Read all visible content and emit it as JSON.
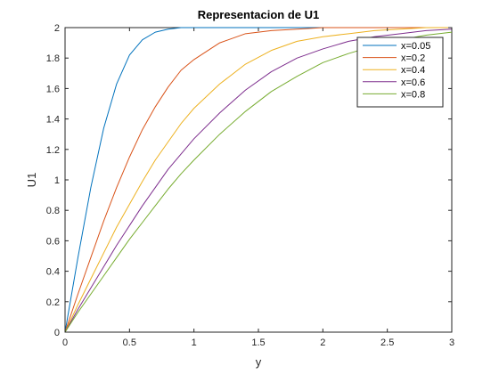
{
  "chart_data": {
    "type": "line",
    "title": "Representacion de U1",
    "xlabel": "y",
    "ylabel": "U1",
    "xlim": [
      0,
      3
    ],
    "ylim": [
      0,
      2
    ],
    "x_ticks": [
      "0",
      "0.5",
      "1",
      "1.5",
      "2",
      "2.5",
      "3"
    ],
    "y_ticks": [
      "0",
      "0.2",
      "0.4",
      "0.6",
      "0.8",
      "1",
      "1.2",
      "1.4",
      "1.6",
      "1.8",
      "2"
    ],
    "grid": false,
    "legend_position": "top-right",
    "x": [
      0,
      0.1,
      0.2,
      0.3,
      0.4,
      0.5,
      0.6,
      0.7,
      0.8,
      0.9,
      1.0,
      1.2,
      1.4,
      1.6,
      1.8,
      2.0,
      2.2,
      2.4,
      2.6,
      2.8,
      3.0
    ],
    "series": [
      {
        "name": "x=0.05",
        "color": "#0072BD",
        "values": [
          0,
          0.49,
          0.95,
          1.34,
          1.63,
          1.82,
          1.92,
          1.97,
          1.99,
          2.0,
          2.0,
          2.0,
          2.0,
          2.0,
          2.0,
          2.0,
          2.0,
          2.0,
          2.0,
          2.0,
          2.0
        ]
      },
      {
        "name": "x=0.2",
        "color": "#D95319",
        "values": [
          0,
          0.25,
          0.49,
          0.73,
          0.95,
          1.15,
          1.33,
          1.48,
          1.61,
          1.72,
          1.79,
          1.9,
          1.96,
          1.98,
          1.99,
          2.0,
          2.0,
          2.0,
          2.0,
          2.0,
          2.0
        ]
      },
      {
        "name": "x=0.4",
        "color": "#EDB120",
        "values": [
          0,
          0.18,
          0.35,
          0.52,
          0.69,
          0.84,
          0.99,
          1.13,
          1.25,
          1.37,
          1.47,
          1.63,
          1.76,
          1.85,
          1.91,
          1.94,
          1.96,
          1.98,
          1.99,
          2.0,
          2.0
        ]
      },
      {
        "name": "x=0.6",
        "color": "#7E2F8E",
        "values": [
          0,
          0.15,
          0.29,
          0.43,
          0.57,
          0.7,
          0.83,
          0.95,
          1.07,
          1.17,
          1.27,
          1.44,
          1.59,
          1.71,
          1.8,
          1.86,
          1.91,
          1.94,
          1.96,
          1.98,
          1.99
        ]
      },
      {
        "name": "x=0.8",
        "color": "#77AC30",
        "values": [
          0,
          0.13,
          0.25,
          0.37,
          0.49,
          0.61,
          0.72,
          0.83,
          0.94,
          1.04,
          1.13,
          1.3,
          1.45,
          1.58,
          1.68,
          1.77,
          1.83,
          1.88,
          1.92,
          1.95,
          1.97
        ]
      }
    ]
  }
}
